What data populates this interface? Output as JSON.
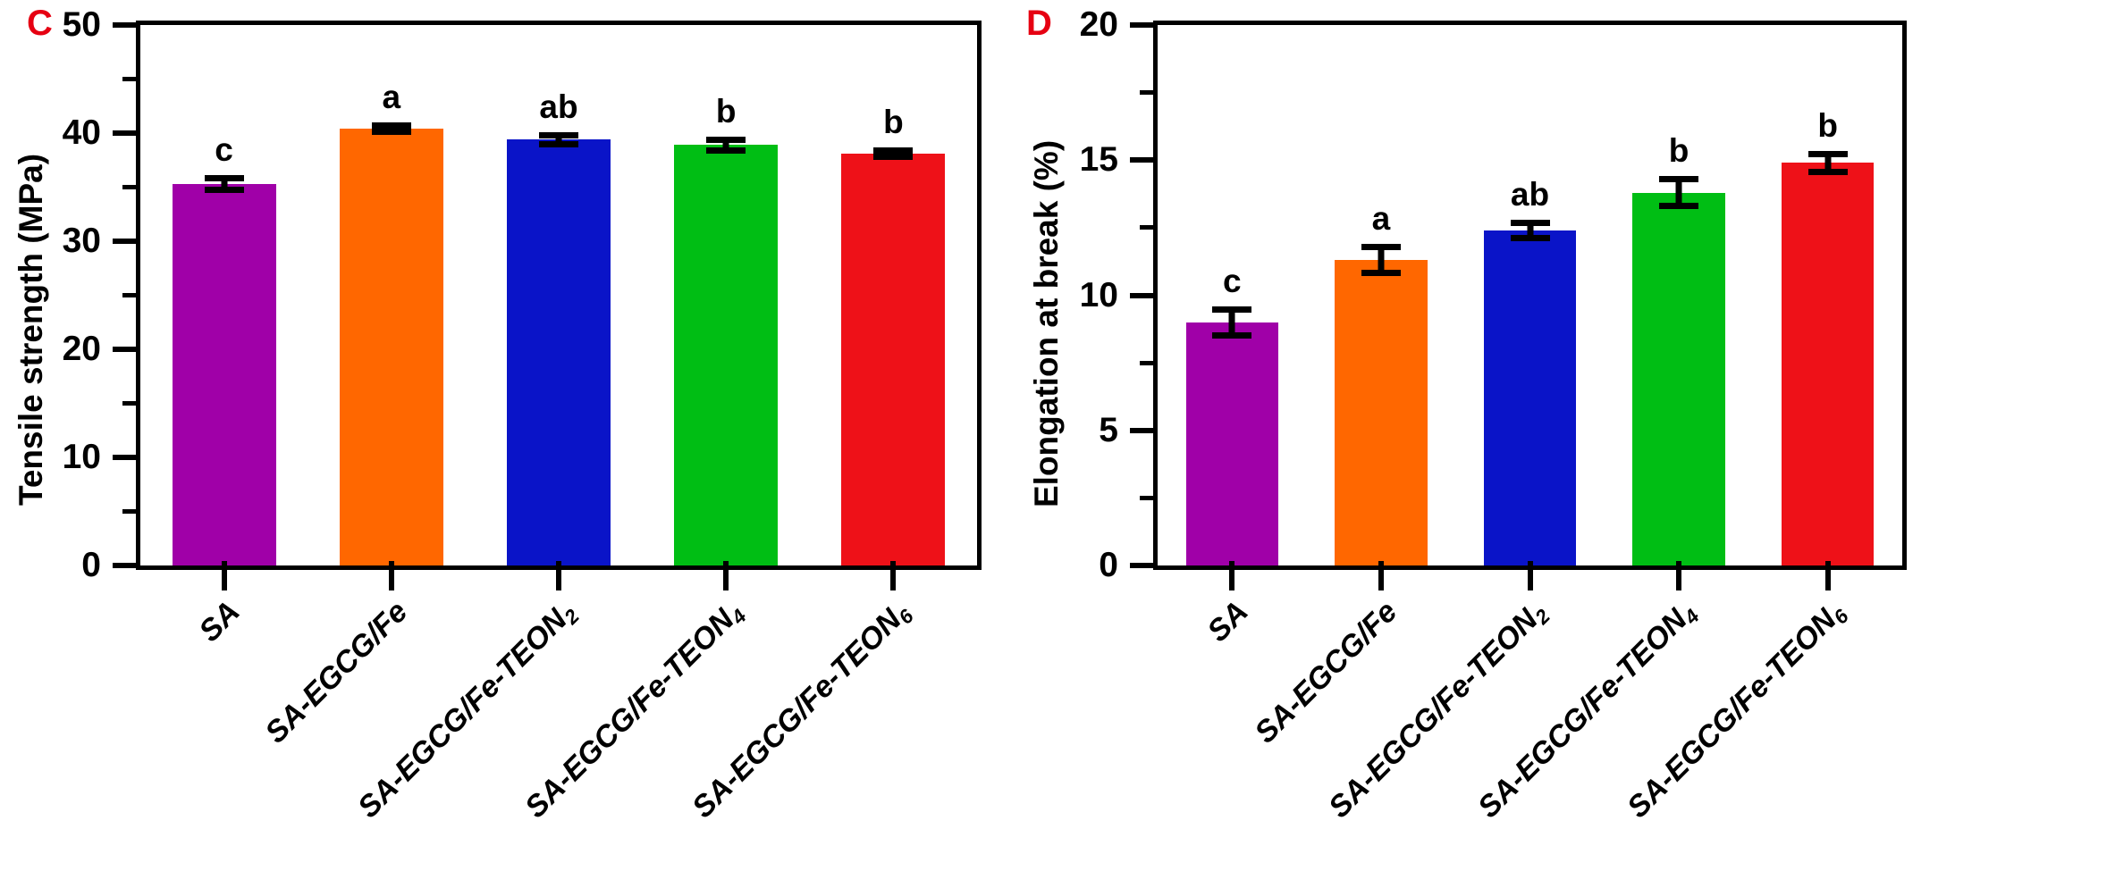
{
  "figure": {
    "background": "#ffffff",
    "panel_label_color": "#e60012",
    "axis_color": "#000000",
    "panels": [
      "C",
      "D"
    ]
  },
  "chart_data": [
    {
      "type": "bar",
      "panel_label": "C",
      "title": "",
      "xlabel": "",
      "ylabel": "Tensile strength (MPa)",
      "ylim": [
        0,
        50
      ],
      "ytick_major": 10,
      "ytick_minor": 5,
      "ytick_labels": [
        "0",
        "10",
        "20",
        "30",
        "40",
        "50"
      ],
      "grid": false,
      "legend": "none",
      "categories": [
        {
          "label": "SA",
          "sub": ""
        },
        {
          "label": "SA-EGCG/Fe",
          "sub": ""
        },
        {
          "label": "SA-EGCG/Fe-TEON",
          "sub": "2"
        },
        {
          "label": "SA-EGCG/Fe-TEON",
          "sub": "4"
        },
        {
          "label": "SA-EGCG/Fe-TEON",
          "sub": "6"
        }
      ],
      "values": [
        35.3,
        40.4,
        39.4,
        38.9,
        38.1
      ],
      "errors": [
        0.8,
        0.6,
        0.7,
        0.8,
        0.6
      ],
      "sig_letters": [
        "c",
        "a",
        "ab",
        "b",
        "b"
      ],
      "bar_colors": [
        "#A000A8",
        "#FF6700",
        "#0A14C8",
        "#00BE14",
        "#EE1118"
      ]
    },
    {
      "type": "bar",
      "panel_label": "D",
      "title": "",
      "xlabel": "",
      "ylabel": "Elongation at break (%)",
      "ylim": [
        0,
        20
      ],
      "ytick_major": 5,
      "ytick_minor": 2.5,
      "ytick_labels": [
        "0",
        "5",
        "10",
        "15",
        "20"
      ],
      "grid": false,
      "legend": "none",
      "categories": [
        {
          "label": "SA",
          "sub": ""
        },
        {
          "label": "SA-EGCG/Fe",
          "sub": ""
        },
        {
          "label": "SA-EGCG/Fe-TEON",
          "sub": "2"
        },
        {
          "label": "SA-EGCG/Fe-TEON",
          "sub": "4"
        },
        {
          "label": "SA-EGCG/Fe-TEON",
          "sub": "6"
        }
      ],
      "values": [
        9.0,
        11.3,
        12.4,
        13.8,
        14.9
      ],
      "errors": [
        0.6,
        0.6,
        0.4,
        0.6,
        0.45
      ],
      "sig_letters": [
        "c",
        "a",
        "ab",
        "b",
        "b"
      ],
      "bar_colors": [
        "#A000A8",
        "#FF6700",
        "#0A14C8",
        "#00BE14",
        "#EE1118"
      ]
    }
  ]
}
